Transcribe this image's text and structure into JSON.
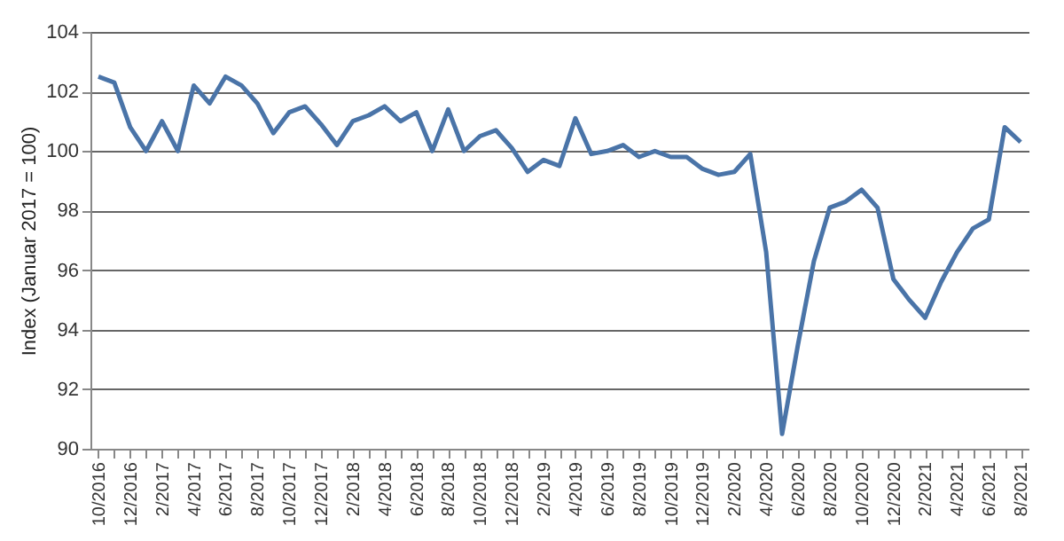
{
  "chart_data": {
    "type": "line",
    "ylabel": "Index (Januar 2017 = 100)",
    "categories": [
      "10/2016",
      null,
      "12/2016",
      null,
      "2/2017",
      null,
      "4/2017",
      null,
      "6/2017",
      null,
      "8/2017",
      null,
      "10/2017",
      null,
      "12/2017",
      null,
      "2/2018",
      null,
      "4/2018",
      null,
      "6/2018",
      null,
      "8/2018",
      null,
      "10/2018",
      null,
      "12/2018",
      null,
      "2/2019",
      null,
      "4/2019",
      null,
      "6/2019",
      null,
      "8/2019",
      null,
      "10/2019",
      null,
      "12/2019",
      null,
      "2/2020",
      null,
      "4/2020",
      null,
      "6/2020",
      null,
      "8/2020",
      null,
      "10/2020",
      null,
      "12/2020",
      null,
      "2/2021",
      null,
      "4/2021",
      null,
      "6/2021",
      null,
      "8/2021"
    ],
    "series": [
      {
        "color": "#4a74a8",
        "values": [
          102.5,
          102.3,
          100.8,
          100.0,
          101.0,
          100.0,
          102.2,
          101.6,
          102.5,
          102.2,
          101.6,
          100.6,
          101.3,
          101.5,
          100.9,
          100.2,
          101.0,
          101.2,
          101.5,
          101.0,
          101.3,
          100.0,
          101.4,
          100.0,
          100.5,
          100.7,
          100.1,
          99.3,
          99.7,
          99.5,
          101.1,
          99.9,
          100.0,
          100.2,
          99.8,
          100.0,
          99.8,
          99.8,
          99.4,
          99.2,
          99.3,
          99.9,
          96.6,
          90.5,
          93.5,
          96.3,
          98.1,
          98.3,
          98.7,
          98.1,
          95.7,
          95.0,
          94.4,
          95.6,
          96.6,
          97.4,
          97.7,
          100.8,
          100.3
        ]
      }
    ],
    "ylim": [
      90,
      104
    ],
    "yticks": [
      90,
      92,
      94,
      96,
      98,
      100,
      102,
      104
    ],
    "grid": "y",
    "legend": false,
    "marker": "none",
    "line_style": "solid"
  }
}
